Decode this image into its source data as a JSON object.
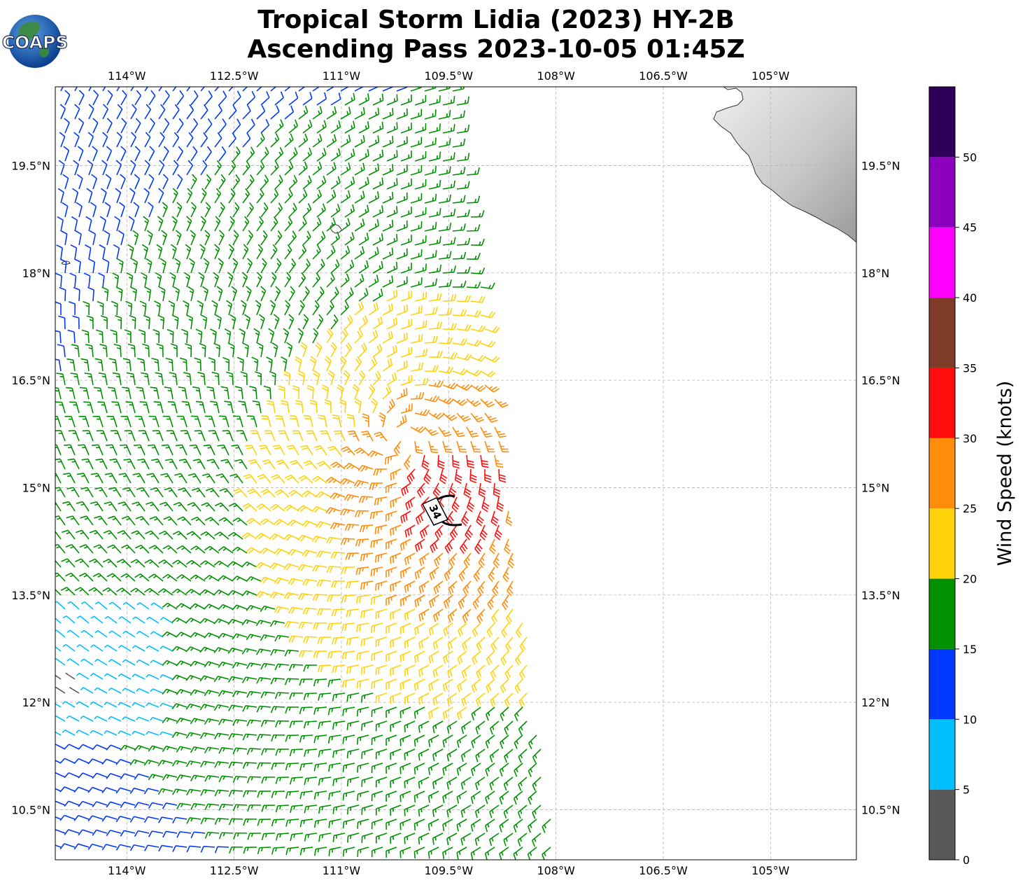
{
  "logo": {
    "text": "COAPS"
  },
  "title": {
    "line1": "Tropical Storm Lidia (2023) HY-2B",
    "line2": "Ascending Pass 2023-10-05 01:45Z"
  },
  "map": {
    "lon_range": [
      -115.0,
      -103.8
    ],
    "lat_range": [
      9.8,
      20.6
    ],
    "lon_ticks": [
      {
        "value": -114.0,
        "label": "114°W"
      },
      {
        "value": -112.5,
        "label": "112.5°W"
      },
      {
        "value": -111.0,
        "label": "111°W"
      },
      {
        "value": -109.5,
        "label": "109.5°W"
      },
      {
        "value": -108.0,
        "label": "108°W"
      },
      {
        "value": -106.5,
        "label": "106.5°W"
      },
      {
        "value": -105.0,
        "label": "105°W"
      }
    ],
    "lat_ticks": [
      {
        "value": 19.5,
        "label": "19.5°N"
      },
      {
        "value": 18.0,
        "label": "18°N"
      },
      {
        "value": 16.5,
        "label": "16.5°N"
      },
      {
        "value": 15.0,
        "label": "15°N"
      },
      {
        "value": 13.5,
        "label": "13.5°N"
      },
      {
        "value": 12.0,
        "label": "12°N"
      },
      {
        "value": 10.5,
        "label": "10.5°N"
      }
    ],
    "gridlines": true,
    "storm_center": {
      "lon": -109.4,
      "lat": 14.85,
      "label": "34"
    },
    "wind_field": {
      "center": {
        "lon": -110.2,
        "lat": 15.7
      },
      "swath_east_edge_top": -109.4,
      "swath_east_edge_bottom": -108.0,
      "units": "knots"
    },
    "land_color": "#d8d8d8"
  },
  "colorbar": {
    "label": "Wind Speed (knots)",
    "bins": [
      {
        "min": 0,
        "max": 5,
        "color": "#595959"
      },
      {
        "min": 5,
        "max": 10,
        "color": "#00bfff"
      },
      {
        "min": 10,
        "max": 15,
        "color": "#0038ff"
      },
      {
        "min": 15,
        "max": 20,
        "color": "#009100"
      },
      {
        "min": 20,
        "max": 25,
        "color": "#ffd20a"
      },
      {
        "min": 25,
        "max": 30,
        "color": "#ff8c0a"
      },
      {
        "min": 30,
        "max": 35,
        "color": "#ff0d0d"
      },
      {
        "min": 35,
        "max": 40,
        "color": "#7f3b29"
      },
      {
        "min": 40,
        "max": 45,
        "color": "#ff00ff"
      },
      {
        "min": 45,
        "max": 50,
        "color": "#8c00bf"
      },
      {
        "min": 50,
        "max": 55,
        "color": "#2f0059"
      }
    ],
    "ticks": [
      {
        "value": 0,
        "label": "0"
      },
      {
        "value": 5,
        "label": "5"
      },
      {
        "value": 10,
        "label": "10"
      },
      {
        "value": 15,
        "label": "15"
      },
      {
        "value": 20,
        "label": "20"
      },
      {
        "value": 25,
        "label": "25"
      },
      {
        "value": 30,
        "label": "30"
      },
      {
        "value": 35,
        "label": "35"
      },
      {
        "value": 40,
        "label": "40"
      },
      {
        "value": 45,
        "label": "45"
      },
      {
        "value": 50,
        "label": "50"
      }
    ]
  }
}
